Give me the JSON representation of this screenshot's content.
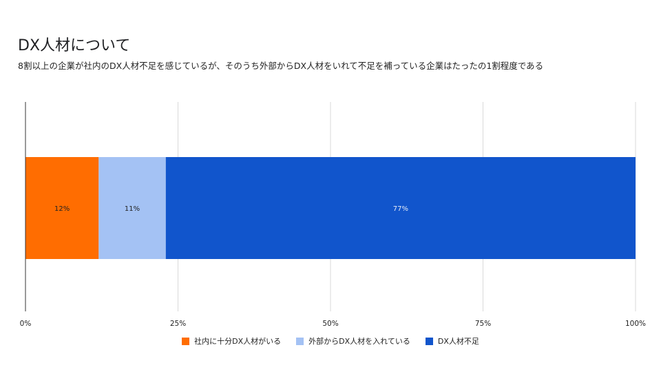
{
  "chart_data": {
    "type": "bar",
    "orientation": "horizontal",
    "stacked": true,
    "title": "DX人材について",
    "subtitle": "8割以上の企業が社内のDX人材不足を感じているが、そのうち外部からDX人材をいれて不足を補っている企業はたったの1割程度である",
    "categories": [
      ""
    ],
    "series": [
      {
        "name": "社内に十分DX人材がいる",
        "values": [
          12
        ],
        "label": "12%",
        "color": "#ff6d01"
      },
      {
        "name": "外部からDX人材を入れている",
        "values": [
          11
        ],
        "label": "11%",
        "color": "#a4c2f4"
      },
      {
        "name": "DX人材不足",
        "values": [
          77
        ],
        "label": "77%",
        "color": "#1155cc"
      }
    ],
    "xlim": [
      0,
      100
    ],
    "ticks": [
      "0%",
      "25%",
      "50%",
      "75%",
      "100%"
    ],
    "tick_values": [
      0,
      25,
      50,
      75,
      100
    ],
    "grid": true,
    "legend_position": "bottom"
  }
}
